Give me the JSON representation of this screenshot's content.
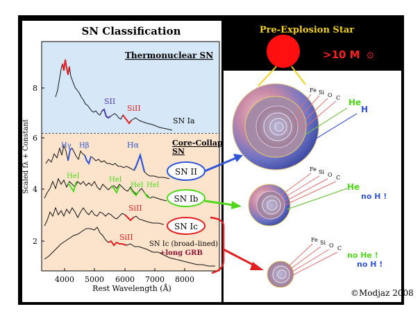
{
  "left_panel": {
    "title": "SN Classification",
    "y_axis_label": "Scaled fλ + Constant",
    "x_axis_label": "Rest Wavelength (Å)",
    "x_ticks": [
      "4000",
      "5000",
      "6000",
      "7000",
      "8000"
    ],
    "y_ticks": [
      "2",
      "4",
      "6",
      "8"
    ],
    "thermonuclear_label": "Thermonuclear SN",
    "core_collapse_label_line1": "Core-Collapse",
    "core_collapse_label_line2": "SN",
    "line_labels": {
      "s2": "SII",
      "si2_ia": "SiII",
      "hgamma": "Hγ",
      "hbeta": "Hβ",
      "halpha": "Hα",
      "he1_a": "HeI",
      "he1_b": "HeI",
      "he1_c": "HeI",
      "he1_d": "HeI",
      "si2_ic": "SiII",
      "si2_bl": "SiII"
    },
    "type_labels": {
      "ia": "SN Ia",
      "ii": "SN II",
      "ib": "SN Ib",
      "ic": "SN Ic",
      "ic_bl": "SN Ic (broad–lined)",
      "grb": "+long GRB"
    }
  },
  "right_panel": {
    "title": "Pre-Explosion Star",
    "mass_label": ">10 M",
    "mass_symbol": "⊙",
    "shells": [
      "Fe",
      "Si",
      "O",
      "C"
    ],
    "star_ii": {
      "he": "He",
      "h": "H"
    },
    "star_ib": {
      "he": "He",
      "h": "no H !"
    },
    "star_ic": {
      "he": "no He !",
      "h": "no H !"
    },
    "credit": "©Modjaz 2008"
  },
  "colors": {
    "ia_bg": "#d6e8f7",
    "cc_bg": "#fbe3cc",
    "blue": "#2f55d6",
    "green": "#4fd81a",
    "red": "#e02020",
    "purple": "#4a3aa8",
    "label_yellow": "#f2d020",
    "grb": "#8a1030"
  }
}
